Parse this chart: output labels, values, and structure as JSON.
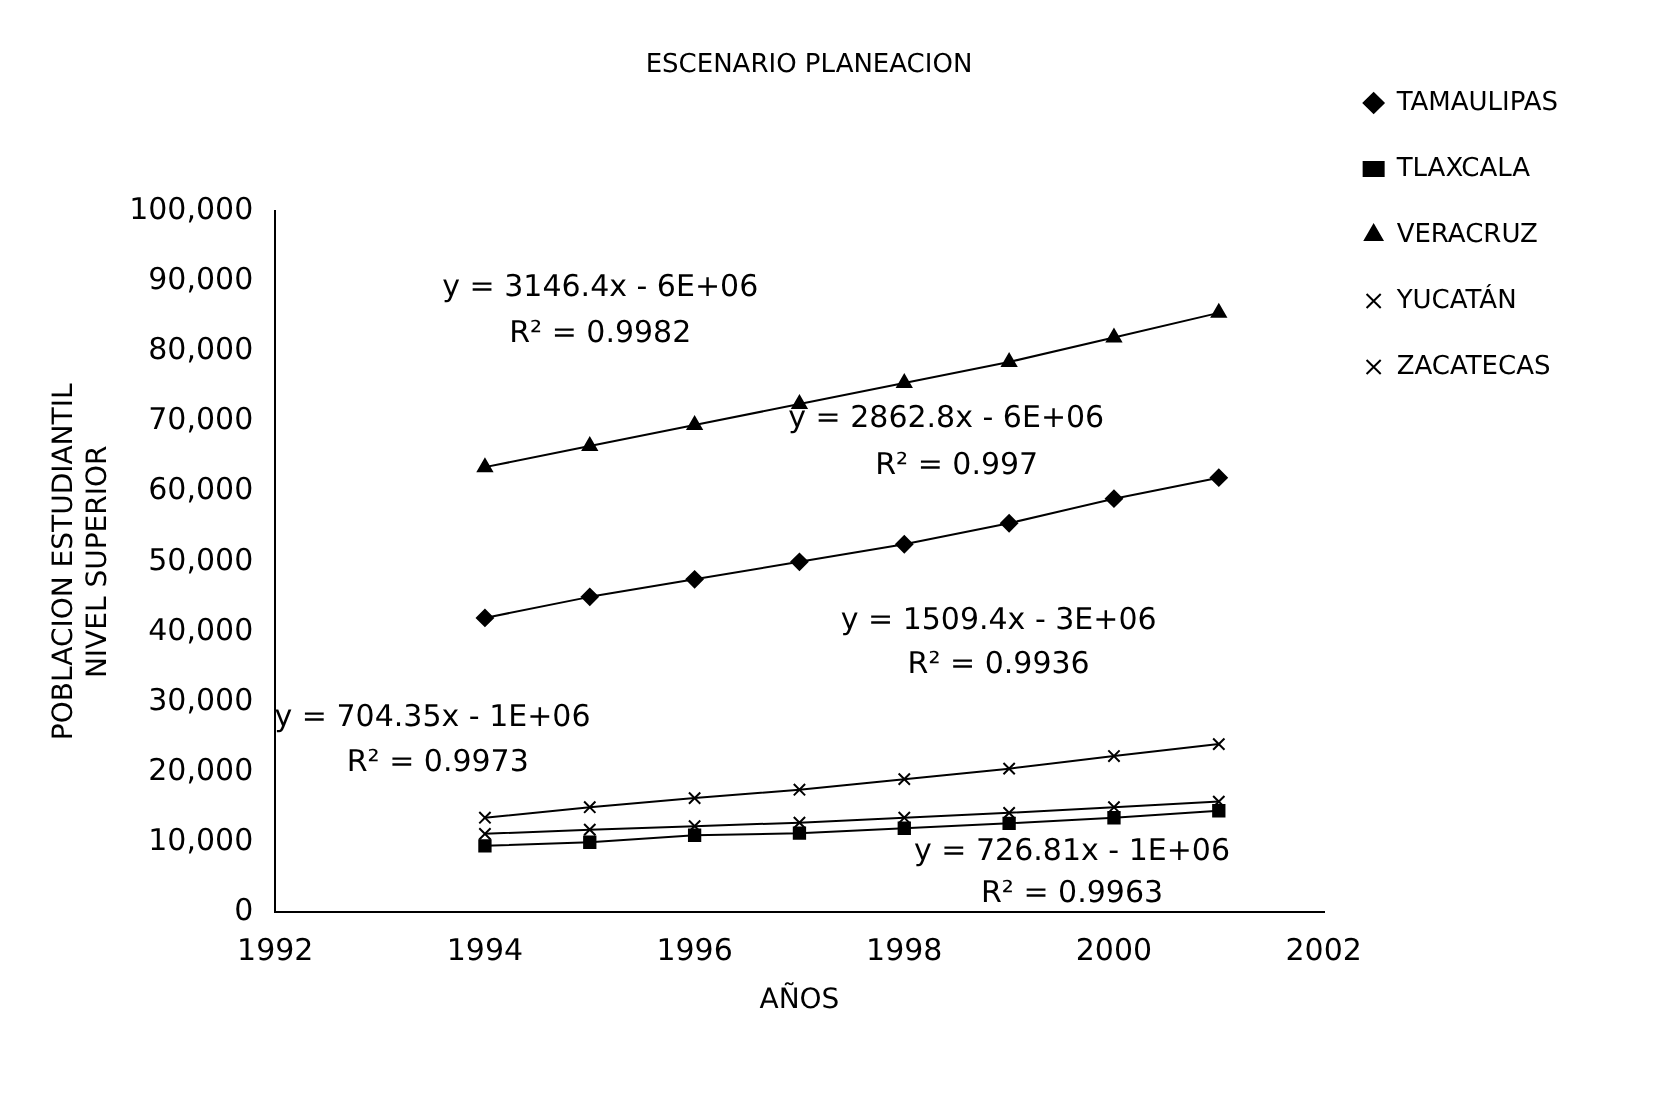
{
  "chart_data": {
    "type": "line",
    "title": "ESCENARIO PLANEACION",
    "xlabel": "AÑOS",
    "ylabel": "POBLACION ESTUDIANTIL NIVEL SUPERIOR",
    "x": [
      1994,
      1995,
      1996,
      1997,
      1998,
      1999,
      2000,
      2001
    ],
    "series": [
      {
        "name": "TAMAULIPAS",
        "color": "#000000",
        "marker": "diamond",
        "values": [
          42000,
          45000,
          47500,
          50000,
          52500,
          55500,
          59000,
          62000
        ]
      },
      {
        "name": "TLAXCALA",
        "color": "#000000",
        "marker": "square",
        "values": [
          9500,
          10000,
          11000,
          11300,
          12000,
          12700,
          13500,
          14500
        ]
      },
      {
        "name": "VERACRUZ",
        "color": "#000000",
        "marker": "triangle",
        "values": [
          63500,
          66500,
          69500,
          72500,
          75500,
          78500,
          82000,
          85500
        ]
      },
      {
        "name": "YUCATÁN",
        "color": "#000000",
        "marker": "cross",
        "values": [
          13500,
          15000,
          16300,
          17500,
          19000,
          20500,
          22300,
          24000
        ]
      },
      {
        "name": "ZACATECAS",
        "color": "#000000",
        "marker": "cross",
        "values": [
          11200,
          11800,
          12300,
          12800,
          13500,
          14200,
          15000,
          15800
        ]
      }
    ],
    "xlim": [
      1992,
      2002
    ],
    "xticks": [
      1992,
      1994,
      1996,
      1998,
      2000,
      2002
    ],
    "ylim": [
      0,
      100000
    ],
    "yticks": [
      {
        "value": 0,
        "label": "0"
      },
      {
        "value": 10000,
        "label": "10,000"
      },
      {
        "value": 20000,
        "label": "20,000"
      },
      {
        "value": 30000,
        "label": "30,000"
      },
      {
        "value": 40000,
        "label": "40,000"
      },
      {
        "value": 50000,
        "label": "50,000"
      },
      {
        "value": 60000,
        "label": "60,000"
      },
      {
        "value": 70000,
        "label": "70,000"
      },
      {
        "value": 80000,
        "label": "80,000"
      },
      {
        "value": 90000,
        "label": "90,000"
      },
      {
        "value": 100000,
        "label": "100,000"
      }
    ],
    "grid": false,
    "legend": "right",
    "line_style": "solid",
    "annotations": [
      "y = 3146.4x - 6E+06",
      "R² = 0.9982",
      "y = 2862.8x - 6E+06",
      "R² = 0.997",
      "y = 1509.4x - 3E+06",
      "R² = 0.9936",
      "y = 704.35x - 1E+06",
      "R² = 0.9973",
      "y = 726.81x - 1E+06",
      "R² = 0.9963"
    ]
  }
}
